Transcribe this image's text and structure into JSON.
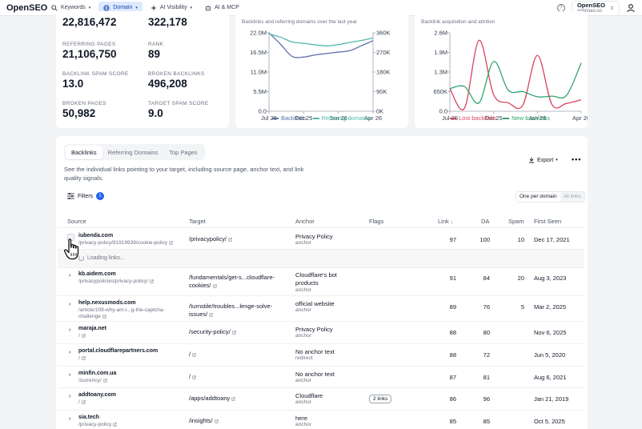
{
  "nav": {
    "logo": "OpenSEO",
    "tabs": [
      {
        "label": "Keywords",
        "icon": "search-icon"
      },
      {
        "label": "Domain",
        "icon": "globe-icon"
      },
      {
        "label": "AI Visibility",
        "icon": "sparkle-icon"
      },
      {
        "label": "AI & MCP",
        "icon": "robot-icon"
      }
    ],
    "project_name": "OpenSEO",
    "project_sub": "openseo.so"
  },
  "stats": {
    "backlinks_value": "22,816,472",
    "ref_domains_value": "322,178",
    "referring_pages_label": "REFERRING PAGES",
    "referring_pages_value": "21,106,750",
    "rank_label": "RANK",
    "rank_value": "89",
    "spam_label": "BACKLINK SPAM SCORE",
    "spam_value": "13.0",
    "broken_backlinks_label": "BROKEN BACKLINKS",
    "broken_backlinks_value": "496,208",
    "broken_pages_label": "BROKEN PAGES",
    "broken_pages_value": "50,982",
    "target_spam_label": "TARGET SPAM SCORE",
    "target_spam_value": "9.0"
  },
  "chart_data": [
    {
      "type": "line",
      "title": "Backlinks and referring domains over the last year",
      "x": [
        "Jul 25",
        "Aug 25",
        "Sep 25",
        "Oct 25",
        "Nov 25",
        "Dec 25",
        "Jan 26",
        "Feb 26",
        "Mar 26",
        "Apr 26"
      ],
      "x_ticks": [
        "Jul 25",
        "Oct 25",
        "Jan 26",
        "Apr 26"
      ],
      "y_left_ticks": [
        "22.0M",
        "16.5M",
        "11.0M",
        "5.5M",
        "0.0"
      ],
      "y_right_ticks": [
        "360K",
        "270K",
        "180K",
        "90K",
        "0K"
      ],
      "series": [
        {
          "name": "Backlinks",
          "axis": "left",
          "color": "#5b6fa8",
          "values": [
            22.0,
            18.8,
            15.4,
            15.2,
            15.8,
            16.2,
            16.6,
            17.0,
            18.4,
            19.8
          ]
        },
        {
          "name": "Referring domains",
          "axis": "right",
          "color": "#4fb8a8",
          "values": [
            355000,
            340000,
            318000,
            312000,
            305000,
            300000,
            306000,
            316000,
            325000,
            336000
          ]
        }
      ]
    },
    {
      "type": "line",
      "title": "Backlink acquisition and attrition",
      "x": [
        "Jul 25",
        "Aug 25",
        "Sep 25",
        "Oct 25",
        "Nov 25",
        "Dec 25",
        "Jan 26",
        "Feb 26",
        "Mar 26",
        "Apr 26"
      ],
      "x_ticks": [
        "Jul 25",
        "Oct 25",
        "Jan 26",
        "Apr 26"
      ],
      "y_ticks": [
        "2.6M",
        "1.9M",
        "1.3M",
        "650K",
        "0.0"
      ],
      "series": [
        {
          "name": "Lost backlinks",
          "color": "#d9435e",
          "values": [
            750000,
            100000,
            2350000,
            550000,
            280000,
            200000,
            1850000,
            220000,
            260000,
            380000
          ]
        },
        {
          "name": "New backlinks",
          "color": "#2fa46e",
          "values": [
            750000,
            820000,
            280000,
            1650000,
            700000,
            650000,
            480000,
            500000,
            530000,
            1600000
          ]
        }
      ]
    }
  ],
  "backlinks": {
    "tabs": [
      "Backlinks",
      "Referring Domains",
      "Top Pages"
    ],
    "description": "See the individual links pointing to your target, including source page, anchor text, and link quality signals.",
    "export_label": "Export",
    "more_label": "•••",
    "filters_label": "Filters",
    "filters_count": "1",
    "seg_on": "One per domain",
    "seg_off": "All links",
    "columns": {
      "source": "Source",
      "target": "Target",
      "anchor": "Anchor",
      "flags": "Flags",
      "link": "Link",
      "da": "DA",
      "spam": "Spam",
      "first_seen": "First Seen"
    },
    "loading": "Loading links...",
    "rows": [
      {
        "domain": "iubenda.com",
        "path": "/privacy-policy/81919939/cookie-policy",
        "target": "/privacypolicy/",
        "anchor": "Privacy Policy",
        "anchor_type": "anchor",
        "flag": "",
        "link": "97",
        "da": "100",
        "spam": "10",
        "first_seen": "Dec 17, 2021"
      },
      {
        "domain": "kb.aidem.com",
        "path": "/privacypolicies/privacy-policy/",
        "target": "/fundamentals/get-s...cloudflare-cookies/",
        "anchor": "Cloudflare's bot products",
        "anchor_type": "anchor",
        "flag": "",
        "link": "91",
        "da": "84",
        "spam": "20",
        "first_seen": "Aug 3, 2023"
      },
      {
        "domain": "help.nexusmods.com",
        "path": "/article/109-why-am-i...g-the-captcha-challenge",
        "target": "/turnstile/troubles...lenge-solve-issues/",
        "anchor": "official website",
        "anchor_type": "anchor",
        "flag": "",
        "link": "89",
        "da": "76",
        "spam": "5",
        "first_seen": "Mar 2, 2025"
      },
      {
        "domain": "maraja.net",
        "path": "/",
        "target": "/security-policy/",
        "anchor": "Privacy Policy",
        "anchor_type": "anchor",
        "flag": "",
        "link": "88",
        "da": "80",
        "spam": "",
        "first_seen": "Nov 6, 2025"
      },
      {
        "domain": "portal.cloudflarepartners.com",
        "path": "/",
        "target": "/",
        "anchor": "No anchor text",
        "anchor_type": "redirect",
        "flag": "",
        "link": "88",
        "da": "72",
        "spam": "",
        "first_seen": "Jun 5, 2020"
      },
      {
        "domain": "minfin.com.ua",
        "path": "/currency/",
        "target": "/",
        "anchor": "No anchor text",
        "anchor_type": "anchor",
        "flag": "",
        "link": "87",
        "da": "81",
        "spam": "",
        "first_seen": "Aug 6, 2021"
      },
      {
        "domain": "addtoany.com",
        "path": "/",
        "target": "/apps/addtoany",
        "anchor": "Cloudflare",
        "anchor_type": "anchor",
        "flag": "2 links",
        "link": "86",
        "da": "96",
        "spam": "",
        "first_seen": "Jan 21, 2019"
      },
      {
        "domain": "sia.tech",
        "path": "/privacy-policy",
        "target": "/insights/",
        "anchor": "here",
        "anchor_type": "anchor",
        "flag": "",
        "link": "85",
        "da": "85",
        "spam": "",
        "first_seen": "Oct 5, 2025"
      }
    ]
  }
}
